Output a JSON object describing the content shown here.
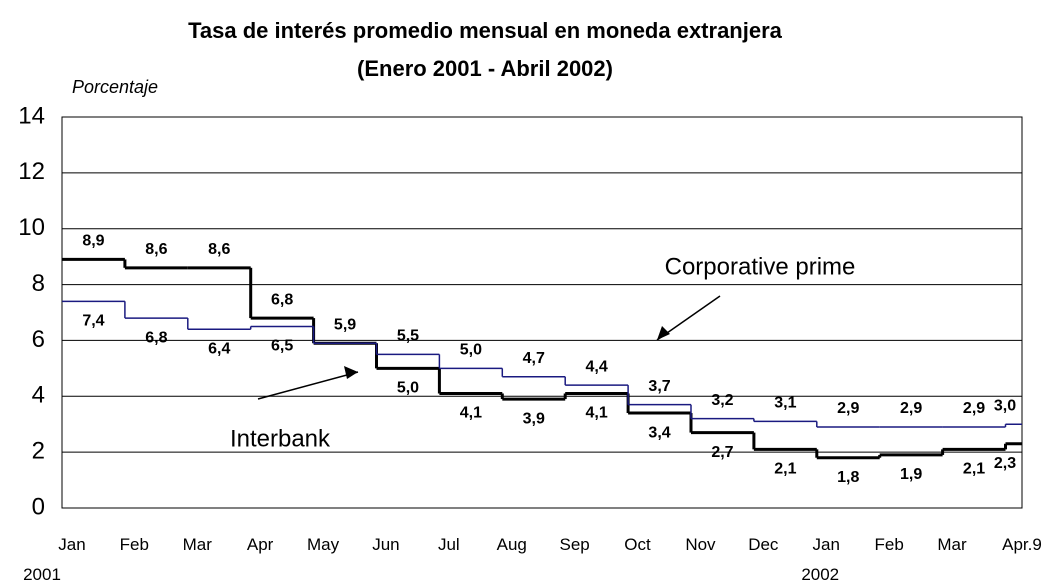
{
  "chart_data": {
    "type": "step",
    "title": [
      "Tasa de interés promedio mensual en moneda extranjera",
      "(Enero 2001 - Abril 2002)"
    ],
    "y_label": "Porcentaje",
    "categories": [
      "Jan 2001",
      "Feb",
      "Mar",
      "Apr",
      "May",
      "Jun",
      "Jul",
      "Aug",
      "Sep",
      "Oct",
      "Nov",
      "Dec",
      "Jan 2002",
      "Feb",
      "Mar",
      "Apr.9"
    ],
    "series": [
      {
        "name": "Interbank",
        "color": "#000000",
        "values": [
          8.9,
          8.6,
          8.6,
          6.8,
          5.9,
          5.0,
          4.1,
          3.9,
          4.1,
          3.4,
          2.7,
          2.1,
          1.8,
          1.9,
          2.1,
          2.3
        ],
        "value_labels": [
          "8,9",
          "8,6",
          "8,6",
          "6,8",
          "5,9",
          "5,0",
          "4,1",
          "3,9",
          "4,1",
          "3,4",
          "2,7",
          "2,1",
          "1,8",
          "1,9",
          "2,1",
          "2,3"
        ]
      },
      {
        "name": "Corporative prime",
        "color": "#1a1a80",
        "values": [
          7.4,
          6.8,
          6.4,
          6.5,
          5.9,
          5.5,
          5.0,
          4.7,
          4.4,
          3.7,
          3.2,
          3.1,
          2.9,
          2.9,
          2.9,
          3.0
        ],
        "value_labels": [
          "7,4",
          "6,8",
          "6,4",
          "6,5",
          null,
          "5,5",
          "5,0",
          "4,7",
          "4,4",
          "3,7",
          "3,2",
          "3,1",
          "2,9",
          "2,9",
          "2,9",
          "3,0"
        ]
      }
    ],
    "ylim": [
      0,
      14
    ],
    "yticks": [
      0,
      2,
      4,
      6,
      8,
      10,
      12,
      14
    ],
    "grid": true
  }
}
